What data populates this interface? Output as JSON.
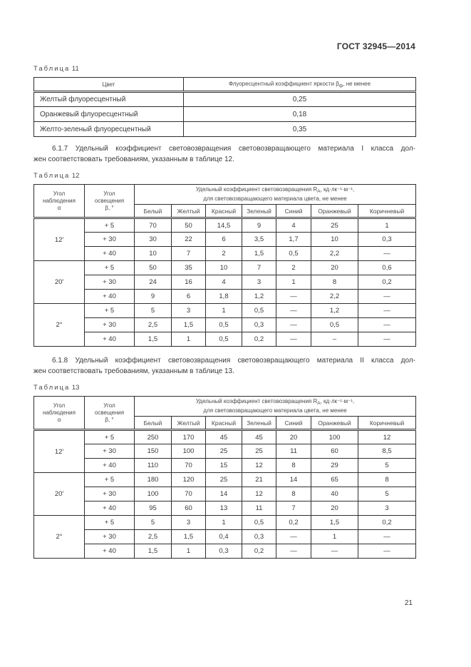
{
  "header": {
    "title": "ГОСТ 32945—2014"
  },
  "page_number": "21",
  "table11": {
    "label_word": "Таблица",
    "label_number": "11",
    "col1_header": "Цвет",
    "col2_header_pre": "Флуоресцентный коэффициент яркости β",
    "col2_header_sub": "ф",
    "col2_header_post": ", не менее",
    "rows": [
      {
        "color": "Желтый флуоресцентный",
        "value": "0,25"
      },
      {
        "color": "Оранжевый флуоресцентный",
        "value": "0,18"
      },
      {
        "color": "Желто-зеленый флуоресцентный",
        "value": "0,35"
      }
    ]
  },
  "paragraphs": {
    "p617": {
      "line1": "6.1.7 Удельный коэффициент световозвращения световозвращающего материала I класса дол-",
      "line2": "жен соответствовать требованиям, указанным в таблице 12."
    },
    "p618": {
      "line1": "6.1.8 Удельный коэффициент световозвращения световозвращающего материала II класса дол-",
      "line2": "жен соответствовать требованиям, указанным в таблице 13."
    }
  },
  "rt_header": {
    "col_angle_l1": "Угол",
    "col_angle_l2": "наблюдения",
    "col_angle_l3": "α",
    "col_beta_l1": "Угол",
    "col_beta_l2": "освещения",
    "col_beta_l3": "β, °",
    "formula_pre": "Удельный коэффициент световозвращения R",
    "formula_sub": "А",
    "formula_post": ", кд·лк⁻¹·м⁻¹,",
    "formula_line2": "для световозвращающего материала цвета, не менее",
    "colors": [
      "Белый",
      "Желтый",
      "Красный",
      "Зеленый",
      "Синий",
      "Оранжевый",
      "Коричневый"
    ]
  },
  "table12": {
    "label_word": "Таблица",
    "label_number": "12",
    "groups": [
      {
        "angle": "12′",
        "rows": [
          {
            "beta": "+ 5",
            "values": [
              "70",
              "50",
              "14,5",
              "9",
              "4",
              "25",
              "1"
            ]
          },
          {
            "beta": "+ 30",
            "values": [
              "30",
              "22",
              "6",
              "3,5",
              "1,7",
              "10",
              "0,3"
            ]
          },
          {
            "beta": "+ 40",
            "values": [
              "10",
              "7",
              "2",
              "1,5",
              "0,5",
              "2,2",
              "—"
            ]
          }
        ]
      },
      {
        "angle": "20′",
        "rows": [
          {
            "beta": "+ 5",
            "values": [
              "50",
              "35",
              "10",
              "7",
              "2",
              "20",
              "0,6"
            ]
          },
          {
            "beta": "+ 30",
            "values": [
              "24",
              "16",
              "4",
              "3",
              "1",
              "8",
              "0,2"
            ]
          },
          {
            "beta": "+ 40",
            "values": [
              "9",
              "6",
              "1,8",
              "1,2",
              "—",
              "2,2",
              "—"
            ]
          }
        ]
      },
      {
        "angle": "2°",
        "rows": [
          {
            "beta": "+ 5",
            "values": [
              "5",
              "3",
              "1",
              "0,5",
              "—",
              "1,2",
              "—"
            ]
          },
          {
            "beta": "+ 30",
            "values": [
              "2,5",
              "1,5",
              "0,5",
              "0,3",
              "—",
              "0,5",
              "—"
            ]
          },
          {
            "beta": "+ 40",
            "values": [
              "1,5",
              "1",
              "0,5",
              "0,2",
              "—",
              "–",
              "—"
            ]
          }
        ]
      }
    ]
  },
  "table13": {
    "label_word": "Таблица",
    "label_number": "13",
    "groups": [
      {
        "angle": "12′",
        "rows": [
          {
            "beta": "+ 5",
            "values": [
              "250",
              "170",
              "45",
              "45",
              "20",
              "100",
              "12"
            ]
          },
          {
            "beta": "+ 30",
            "values": [
              "150",
              "100",
              "25",
              "25",
              "11",
              "60",
              "8,5"
            ]
          },
          {
            "beta": "+ 40",
            "values": [
              "110",
              "70",
              "15",
              "12",
              "8",
              "29",
              "5"
            ]
          }
        ]
      },
      {
        "angle": "20′",
        "rows": [
          {
            "beta": "+ 5",
            "values": [
              "180",
              "120",
              "25",
              "21",
              "14",
              "65",
              "8"
            ]
          },
          {
            "beta": "+ 30",
            "values": [
              "100",
              "70",
              "14",
              "12",
              "8",
              "40",
              "5"
            ]
          },
          {
            "beta": "+ 40",
            "values": [
              "95",
              "60",
              "13",
              "11",
              "7",
              "20",
              "3"
            ]
          }
        ]
      },
      {
        "angle": "2°",
        "rows": [
          {
            "beta": "+ 5",
            "values": [
              "5",
              "3",
              "1",
              "0,5",
              "0,2",
              "1,5",
              "0,2"
            ]
          },
          {
            "beta": "+ 30",
            "values": [
              "2,5",
              "1,5",
              "0,4",
              "0,3",
              "—",
              "1",
              "—"
            ]
          },
          {
            "beta": "+ 40",
            "values": [
              "1,5",
              "1",
              "0,3",
              "0,2",
              "—",
              "—",
              "—"
            ]
          }
        ]
      }
    ]
  }
}
